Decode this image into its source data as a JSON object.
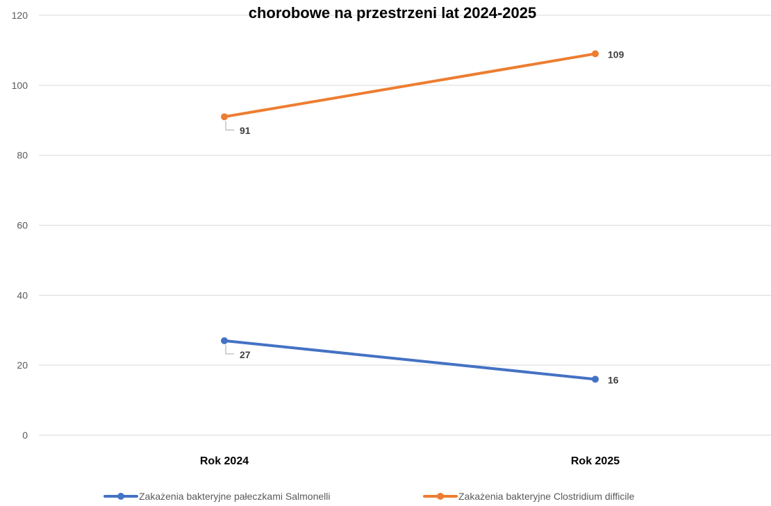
{
  "chart_data": {
    "type": "line",
    "title": "chorobowe na przestrzeni lat 2024-2025",
    "categories": [
      "Rok 2024",
      "Rok 2025"
    ],
    "ylim": [
      0,
      120
    ],
    "yticks": [
      0,
      20,
      40,
      60,
      80,
      100,
      120
    ],
    "grid": true,
    "legend_position": "bottom",
    "series": [
      {
        "name": "Zakażenia bakteryjne pałeczkami Salmonelli",
        "values": [
          27,
          16
        ],
        "color": "#4472C4"
      },
      {
        "name": "Zakażenia bakteryjne Clostridium difficile",
        "values": [
          91,
          109
        ],
        "color": "#ED7D31"
      }
    ]
  }
}
